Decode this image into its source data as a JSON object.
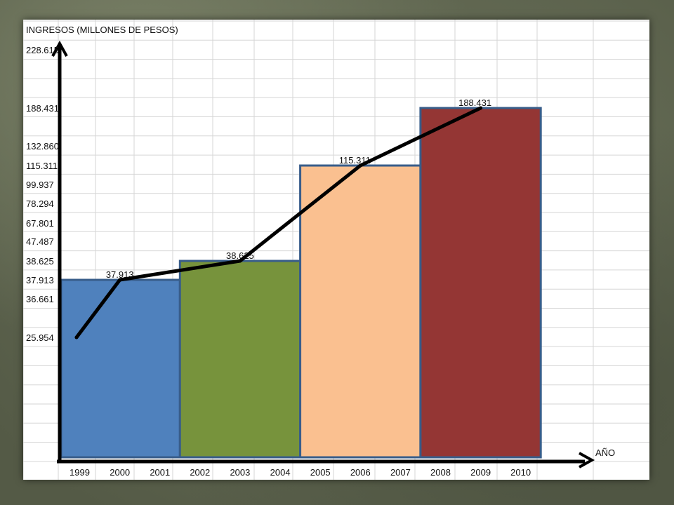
{
  "chart_data": {
    "type": "bar",
    "title": "INGRESOS  (MILLONES DE PESOS)",
    "ylabel": "INGRESOS  (MILLONES DE PESOS)",
    "xlabel": "AÑO",
    "grid": true,
    "y_ticks": [
      "228.615",
      "188.431",
      "132.860",
      "115.311",
      "99.937",
      "78.294",
      "67.801",
      "47.487",
      "38.625",
      "37.913",
      "36.661",
      "25.954"
    ],
    "x_ticks": [
      "1999",
      "2000",
      "2001",
      "2002",
      "2003",
      "2004",
      "2005",
      "2006",
      "2007",
      "2008",
      "2009",
      "2010"
    ],
    "bars": [
      {
        "from": "1999",
        "to": "2001",
        "value": 37.913,
        "color": "#4f81bd"
      },
      {
        "from": "2002",
        "to": "2004",
        "value": 38.625,
        "color": "#77933c"
      },
      {
        "from": "2005",
        "to": "2007",
        "value": 115.311,
        "color": "#fac090"
      },
      {
        "from": "2008",
        "to": "2010",
        "value": 188.431,
        "color": "#943634"
      }
    ],
    "bar_labels": [
      "37.913",
      "38.625",
      "115.311",
      "188.431"
    ],
    "line": {
      "color": "#000000",
      "x": [
        "1999",
        "2000",
        "2003",
        "2006",
        "2009"
      ],
      "y": [
        25.954,
        37.913,
        38.625,
        115.311,
        188.431
      ]
    }
  }
}
